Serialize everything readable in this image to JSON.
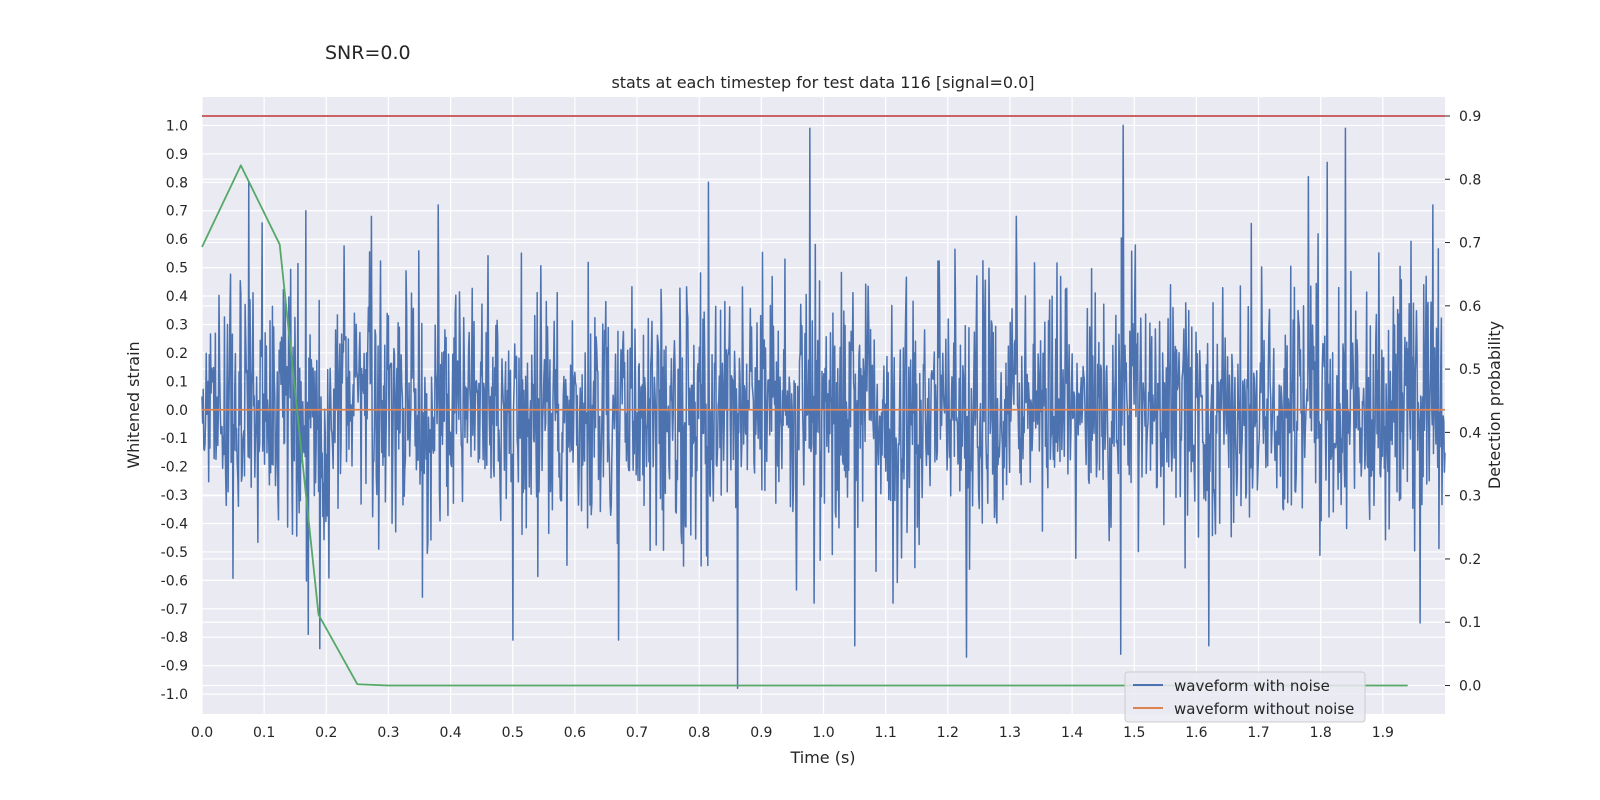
{
  "supertitle": "SNR=0.0",
  "chart_data": {
    "type": "line",
    "title": "stats at each timestep for test data 116 [signal=0.0]",
    "xlabel": "Time (s)",
    "ylabel": "Whitened strain",
    "y2label": "Detection probability",
    "xlim": [
      0.0,
      2.0
    ],
    "ylim": [
      -1.07,
      1.1
    ],
    "y2lim": [
      -0.045,
      0.93
    ],
    "xticks": [
      "0.0",
      "0.1",
      "0.2",
      "0.3",
      "0.4",
      "0.5",
      "0.6",
      "0.7",
      "0.8",
      "0.9",
      "1.0",
      "1.1",
      "1.2",
      "1.3",
      "1.4",
      "1.5",
      "1.6",
      "1.7",
      "1.8",
      "1.9"
    ],
    "yticks": [
      "1.0",
      "0.9",
      "0.8",
      "0.7",
      "0.6",
      "0.5",
      "0.4",
      "0.3",
      "0.2",
      "0.1",
      "0.0",
      "-0.1",
      "-0.2",
      "-0.3",
      "-0.4",
      "-0.5",
      "-0.6",
      "-0.7",
      "-0.8",
      "-0.9",
      "-1.0"
    ],
    "y2ticks": [
      "0.9",
      "0.8",
      "0.7",
      "0.6",
      "0.5",
      "0.4",
      "0.3",
      "0.2",
      "0.1",
      "0.0"
    ],
    "threshold": {
      "value": 0.9,
      "axis": "right",
      "color": "#c44e52"
    },
    "series": [
      {
        "name": "waveform with noise",
        "axis": "left",
        "color": "#4c72b0",
        "kind": "noise",
        "x_range": [
          0.0,
          2.0
        ],
        "samples": 2048,
        "sigma": 0.22,
        "seed": 116,
        "peaks": [
          {
            "x": 0.075,
            "y": 0.8
          },
          {
            "x": 0.167,
            "y": 0.7
          },
          {
            "x": 0.171,
            "y": -0.79
          },
          {
            "x": 0.19,
            "y": -0.84
          },
          {
            "x": 0.38,
            "y": 0.72
          },
          {
            "x": 0.5,
            "y": -0.81
          },
          {
            "x": 0.67,
            "y": -0.81
          },
          {
            "x": 0.815,
            "y": 0.8
          },
          {
            "x": 0.862,
            "y": -0.98
          },
          {
            "x": 0.978,
            "y": 0.99
          },
          {
            "x": 1.05,
            "y": -0.83
          },
          {
            "x": 1.23,
            "y": -0.87
          },
          {
            "x": 1.478,
            "y": -0.86
          },
          {
            "x": 1.482,
            "y": 1.0
          },
          {
            "x": 1.62,
            "y": -0.83
          },
          {
            "x": 1.78,
            "y": 0.82
          },
          {
            "x": 1.81,
            "y": 0.87
          },
          {
            "x": 1.84,
            "y": 0.99
          },
          {
            "x": 1.96,
            "y": -0.75
          },
          {
            "x": 1.98,
            "y": 0.72
          }
        ]
      },
      {
        "name": "waveform without noise",
        "axis": "left",
        "color": "#dd8452",
        "x": [
          0.0,
          2.0
        ],
        "y": [
          0.0,
          0.0
        ]
      },
      {
        "name": "detection probability",
        "axis": "right",
        "color": "#55a868",
        "legend": false,
        "x": [
          0.0,
          0.0625,
          0.125,
          0.1875,
          0.25,
          0.3,
          0.5,
          1.0,
          1.5,
          1.94
        ],
        "y": [
          0.693,
          0.822,
          0.697,
          0.112,
          0.002,
          0.0,
          0.0,
          0.0,
          0.0,
          0.0
        ]
      }
    ],
    "legend": {
      "position": "lower-right",
      "entries": [
        {
          "label": "waveform with noise",
          "color": "#4c72b0"
        },
        {
          "label": "waveform without noise",
          "color": "#dd8452"
        }
      ]
    }
  }
}
